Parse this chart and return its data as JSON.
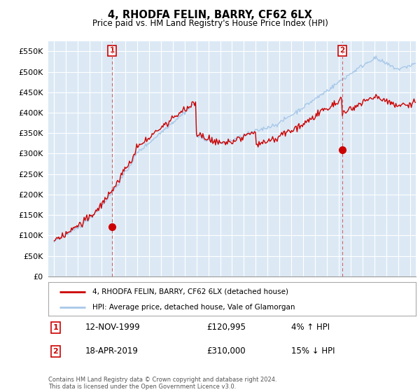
{
  "title": "4, RHODFA FELIN, BARRY, CF62 6LX",
  "subtitle": "Price paid vs. HM Land Registry's House Price Index (HPI)",
  "ylim": [
    0,
    575000
  ],
  "yticks": [
    0,
    50000,
    100000,
    150000,
    200000,
    250000,
    300000,
    350000,
    400000,
    450000,
    500000,
    550000
  ],
  "ytick_labels": [
    "£0",
    "£50K",
    "£100K",
    "£150K",
    "£200K",
    "£250K",
    "£300K",
    "£350K",
    "£400K",
    "£450K",
    "£500K",
    "£550K"
  ],
  "hpi_color": "#a8c8e8",
  "price_color": "#cc0000",
  "background_color": "#ffffff",
  "chart_bg_color": "#dce9f5",
  "grid_color": "#ffffff",
  "vline_color": "#cc6666",
  "annotation1_date": "12-NOV-1999",
  "annotation1_price": 120995,
  "annotation1_hpi_pct": "4% ↑ HPI",
  "annotation2_date": "18-APR-2019",
  "annotation2_price": 310000,
  "annotation2_hpi_pct": "15% ↓ HPI",
  "legend_line1": "4, RHODFA FELIN, BARRY, CF62 6LX (detached house)",
  "legend_line2": "HPI: Average price, detached house, Vale of Glamorgan",
  "footnote": "Contains HM Land Registry data © Crown copyright and database right 2024.\nThis data is licensed under the Open Government Licence v3.0.",
  "marker1_x": 1999.87,
  "marker1_y": 120995,
  "marker2_x": 2019.3,
  "marker2_y": 310000,
  "vline1_x": 1999.87,
  "vline2_x": 2019.3,
  "xlim_left": 1994.5,
  "xlim_right": 2025.5
}
